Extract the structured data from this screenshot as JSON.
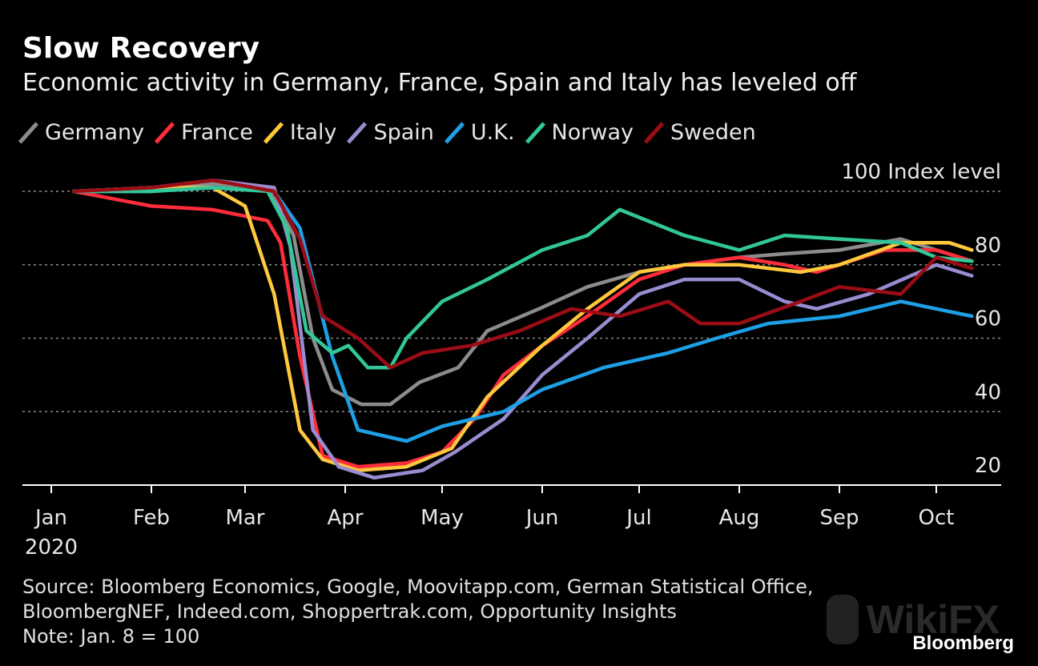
{
  "header": {
    "title": "Slow Recovery",
    "subtitle": "Economic activity in Germany, France, Spain and Italy has leveled off"
  },
  "source_text": "Source: Bloomberg Economics, Google, Moovitapp.com, German Statistical Office,",
  "source_text_2": "BloombergNEF, Indeed.com, Shoppertrak.com, Opportunity Insights",
  "note_text": "Note: Jan. 8 = 100",
  "brand": "Bloomberg",
  "watermark": "WikiFX",
  "chart_data": {
    "type": "line",
    "title": "Slow Recovery",
    "subtitle": "Economic activity in Germany, France, Spain and Italy has leveled off",
    "ylabel": "Index level",
    "ylim": [
      20,
      100
    ],
    "yticks": [
      20,
      40,
      60,
      80,
      100
    ],
    "top_tick_label": "100 Index level",
    "x_ticks": [
      {
        "label": "Jan",
        "sub": "2020",
        "date": "2020-01-01"
      },
      {
        "label": "Feb",
        "date": "2020-02-01"
      },
      {
        "label": "Mar",
        "date": "2020-03-01"
      },
      {
        "label": "Apr",
        "date": "2020-04-01"
      },
      {
        "label": "May",
        "date": "2020-05-01"
      },
      {
        "label": "Jun",
        "date": "2020-06-01"
      },
      {
        "label": "Jul",
        "date": "2020-07-01"
      },
      {
        "label": "Aug",
        "date": "2020-08-01"
      },
      {
        "label": "Sep",
        "date": "2020-09-01"
      },
      {
        "label": "Oct",
        "date": "2020-10-01"
      }
    ],
    "xlim": [
      "2020-01-01",
      "2020-10-31"
    ],
    "grid": "horizontal dotted",
    "legend_position": "top",
    "series": [
      {
        "name": "Germany",
        "color": "#8c8c8c",
        "points": [
          [
            "2020-01-08",
            100
          ],
          [
            "2020-02-01",
            100
          ],
          [
            "2020-02-20",
            102
          ],
          [
            "2020-03-08",
            101
          ],
          [
            "2020-03-16",
            88
          ],
          [
            "2020-03-22",
            60
          ],
          [
            "2020-03-28",
            46
          ],
          [
            "2020-04-06",
            42
          ],
          [
            "2020-04-15",
            42
          ],
          [
            "2020-04-24",
            48
          ],
          [
            "2020-05-06",
            52
          ],
          [
            "2020-05-15",
            62
          ],
          [
            "2020-05-31",
            68
          ],
          [
            "2020-06-15",
            74
          ],
          [
            "2020-07-01",
            78
          ],
          [
            "2020-07-15",
            80
          ],
          [
            "2020-08-01",
            82
          ],
          [
            "2020-08-15",
            83
          ],
          [
            "2020-09-01",
            84
          ],
          [
            "2020-09-20",
            87
          ],
          [
            "2020-10-01",
            84
          ],
          [
            "2020-10-12",
            81
          ]
        ]
      },
      {
        "name": "France",
        "color": "#ff2c3c",
        "points": [
          [
            "2020-01-08",
            100
          ],
          [
            "2020-02-01",
            96
          ],
          [
            "2020-02-20",
            95
          ],
          [
            "2020-03-08",
            92
          ],
          [
            "2020-03-12",
            86
          ],
          [
            "2020-03-18",
            55
          ],
          [
            "2020-03-25",
            28
          ],
          [
            "2020-04-05",
            25
          ],
          [
            "2020-04-20",
            26
          ],
          [
            "2020-05-01",
            29
          ],
          [
            "2020-05-11",
            38
          ],
          [
            "2020-05-20",
            50
          ],
          [
            "2020-06-01",
            58
          ],
          [
            "2020-06-15",
            66
          ],
          [
            "2020-07-01",
            76
          ],
          [
            "2020-07-15",
            80
          ],
          [
            "2020-08-01",
            82
          ],
          [
            "2020-08-15",
            80
          ],
          [
            "2020-08-25",
            78
          ],
          [
            "2020-09-15",
            84
          ],
          [
            "2020-10-01",
            84
          ],
          [
            "2020-10-12",
            81
          ]
        ]
      },
      {
        "name": "Italy",
        "color": "#ffc83d",
        "points": [
          [
            "2020-01-08",
            100
          ],
          [
            "2020-02-01",
            101
          ],
          [
            "2020-02-20",
            101
          ],
          [
            "2020-03-01",
            96
          ],
          [
            "2020-03-10",
            72
          ],
          [
            "2020-03-18",
            35
          ],
          [
            "2020-03-25",
            27
          ],
          [
            "2020-04-05",
            24
          ],
          [
            "2020-04-20",
            25
          ],
          [
            "2020-05-04",
            30
          ],
          [
            "2020-05-15",
            44
          ],
          [
            "2020-06-01",
            58
          ],
          [
            "2020-06-15",
            68
          ],
          [
            "2020-07-01",
            78
          ],
          [
            "2020-07-15",
            80
          ],
          [
            "2020-08-01",
            80
          ],
          [
            "2020-08-20",
            78
          ],
          [
            "2020-09-01",
            80
          ],
          [
            "2020-09-20",
            86
          ],
          [
            "2020-10-05",
            86
          ],
          [
            "2020-10-12",
            84
          ]
        ]
      },
      {
        "name": "Spain",
        "color": "#9a8cd0",
        "points": [
          [
            "2020-01-08",
            100
          ],
          [
            "2020-02-01",
            101
          ],
          [
            "2020-02-20",
            103
          ],
          [
            "2020-03-10",
            101
          ],
          [
            "2020-03-15",
            85
          ],
          [
            "2020-03-22",
            35
          ],
          [
            "2020-03-30",
            25
          ],
          [
            "2020-04-10",
            22
          ],
          [
            "2020-04-25",
            24
          ],
          [
            "2020-05-05",
            29
          ],
          [
            "2020-05-20",
            38
          ],
          [
            "2020-06-01",
            50
          ],
          [
            "2020-06-15",
            60
          ],
          [
            "2020-07-01",
            72
          ],
          [
            "2020-07-15",
            76
          ],
          [
            "2020-08-01",
            76
          ],
          [
            "2020-08-15",
            70
          ],
          [
            "2020-08-25",
            68
          ],
          [
            "2020-09-10",
            72
          ],
          [
            "2020-10-01",
            80
          ],
          [
            "2020-10-12",
            77
          ]
        ]
      },
      {
        "name": "U.K.",
        "color": "#1e9fe6",
        "points": [
          [
            "2020-01-08",
            100
          ],
          [
            "2020-02-01",
            100
          ],
          [
            "2020-02-20",
            101
          ],
          [
            "2020-03-10",
            100
          ],
          [
            "2020-03-18",
            90
          ],
          [
            "2020-03-28",
            55
          ],
          [
            "2020-04-05",
            35
          ],
          [
            "2020-04-20",
            32
          ],
          [
            "2020-05-01",
            36
          ],
          [
            "2020-05-20",
            40
          ],
          [
            "2020-06-01",
            46
          ],
          [
            "2020-06-20",
            52
          ],
          [
            "2020-07-10",
            56
          ],
          [
            "2020-07-25",
            60
          ],
          [
            "2020-08-10",
            64
          ],
          [
            "2020-09-01",
            66
          ],
          [
            "2020-09-20",
            70
          ],
          [
            "2020-10-01",
            68
          ],
          [
            "2020-10-12",
            66
          ]
        ]
      },
      {
        "name": "Norway",
        "color": "#32c797",
        "points": [
          [
            "2020-01-08",
            100
          ],
          [
            "2020-02-01",
            100
          ],
          [
            "2020-02-20",
            101
          ],
          [
            "2020-03-08",
            100
          ],
          [
            "2020-03-14",
            90
          ],
          [
            "2020-03-20",
            62
          ],
          [
            "2020-03-28",
            56
          ],
          [
            "2020-04-02",
            58
          ],
          [
            "2020-04-08",
            52
          ],
          [
            "2020-04-15",
            52
          ],
          [
            "2020-04-20",
            60
          ],
          [
            "2020-05-01",
            70
          ],
          [
            "2020-05-15",
            76
          ],
          [
            "2020-06-01",
            84
          ],
          [
            "2020-06-15",
            88
          ],
          [
            "2020-06-25",
            95
          ],
          [
            "2020-07-15",
            88
          ],
          [
            "2020-08-01",
            84
          ],
          [
            "2020-08-15",
            88
          ],
          [
            "2020-09-01",
            87
          ],
          [
            "2020-09-20",
            86
          ],
          [
            "2020-10-01",
            82
          ],
          [
            "2020-10-12",
            81
          ]
        ]
      },
      {
        "name": "Sweden",
        "color": "#9b0d15",
        "points": [
          [
            "2020-01-08",
            100
          ],
          [
            "2020-02-01",
            101
          ],
          [
            "2020-02-20",
            103
          ],
          [
            "2020-03-10",
            100
          ],
          [
            "2020-03-18",
            87
          ],
          [
            "2020-03-25",
            66
          ],
          [
            "2020-04-05",
            60
          ],
          [
            "2020-04-15",
            52
          ],
          [
            "2020-04-25",
            56
          ],
          [
            "2020-05-10",
            58
          ],
          [
            "2020-05-25",
            62
          ],
          [
            "2020-06-10",
            68
          ],
          [
            "2020-06-25",
            66
          ],
          [
            "2020-07-10",
            70
          ],
          [
            "2020-07-20",
            64
          ],
          [
            "2020-08-01",
            64
          ],
          [
            "2020-08-20",
            70
          ],
          [
            "2020-09-01",
            74
          ],
          [
            "2020-09-20",
            72
          ],
          [
            "2020-10-01",
            82
          ],
          [
            "2020-10-12",
            79
          ]
        ]
      }
    ]
  }
}
